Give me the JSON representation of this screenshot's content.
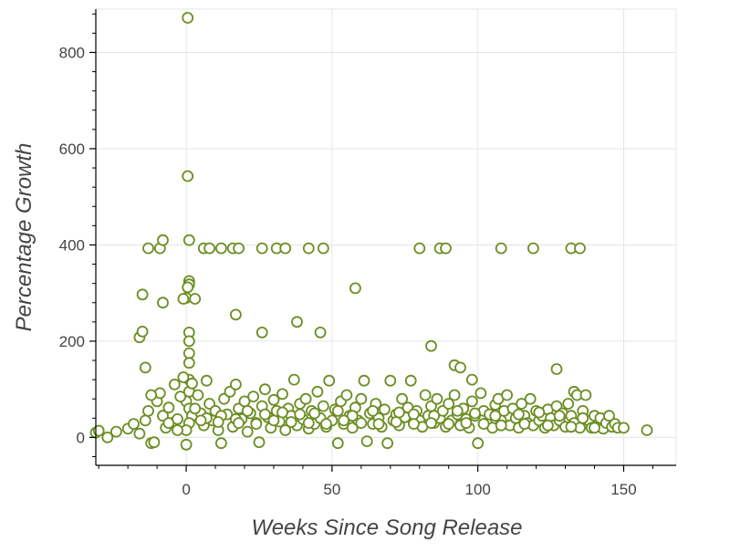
{
  "chart_data": {
    "type": "scatter",
    "title": "",
    "xlabel": "Weeks Since Song Release",
    "ylabel": "Percentage Growth",
    "xlim": [
      -31,
      168
    ],
    "ylim": [
      -58,
      890
    ],
    "x_ticks": [
      0,
      50,
      100,
      150
    ],
    "y_ticks": [
      0,
      200,
      400,
      600,
      800
    ],
    "grid": true,
    "colors": {
      "marker_stroke": "#6b8e23",
      "marker_fill": "#ffffff",
      "grid": "#e5e5e5",
      "axis": "#000000",
      "text": "#444444"
    },
    "points": [
      [
        0.5,
        872
      ],
      [
        0.5,
        543
      ],
      [
        1,
        410
      ],
      [
        1,
        325
      ],
      [
        1,
        318
      ],
      [
        0.5,
        312
      ],
      [
        0,
        290
      ],
      [
        -1,
        288
      ],
      [
        3,
        288
      ],
      [
        1,
        218
      ],
      [
        1,
        200
      ],
      [
        1,
        175
      ],
      [
        1,
        155
      ],
      [
        1,
        120
      ],
      [
        1,
        95
      ],
      [
        0,
        75
      ],
      [
        1,
        60
      ],
      [
        2,
        45
      ],
      [
        1,
        30
      ],
      [
        0,
        15
      ],
      [
        0,
        -15
      ],
      [
        -13,
        393
      ],
      [
        -9,
        393
      ],
      [
        -8,
        410
      ],
      [
        6,
        393
      ],
      [
        8,
        393
      ],
      [
        12,
        393
      ],
      [
        16,
        393
      ],
      [
        18,
        393
      ],
      [
        26,
        393
      ],
      [
        31,
        393
      ],
      [
        34,
        393
      ],
      [
        42,
        393
      ],
      [
        47,
        393
      ],
      [
        80,
        393
      ],
      [
        87,
        393
      ],
      [
        89,
        393
      ],
      [
        108,
        393
      ],
      [
        119,
        393
      ],
      [
        132,
        393
      ],
      [
        135,
        393
      ],
      [
        -15,
        297
      ],
      [
        -8,
        280
      ],
      [
        58,
        310
      ],
      [
        17,
        255
      ],
      [
        26,
        218
      ],
      [
        38,
        240
      ],
      [
        46,
        218
      ],
      [
        84,
        190
      ],
      [
        -16,
        208
      ],
      [
        -15,
        220
      ],
      [
        -14,
        145
      ],
      [
        92,
        150
      ],
      [
        94,
        145
      ],
      [
        98,
        120
      ],
      [
        127,
        142
      ],
      [
        133,
        95
      ],
      [
        -31,
        10
      ],
      [
        -30,
        14
      ],
      [
        -27,
        0
      ],
      [
        -24,
        12
      ],
      [
        -20,
        18
      ],
      [
        -18,
        28
      ],
      [
        -16,
        8
      ],
      [
        -14,
        35
      ],
      [
        -13,
        55
      ],
      [
        -12,
        -12
      ],
      [
        -11,
        -10
      ],
      [
        -10,
        75
      ],
      [
        -9,
        92
      ],
      [
        -8,
        45
      ],
      [
        -7,
        20
      ],
      [
        -6,
        62
      ],
      [
        -5,
        30
      ],
      [
        -4,
        110
      ],
      [
        -3,
        15
      ],
      [
        -2,
        85
      ],
      [
        -1,
        125
      ],
      [
        2,
        112
      ],
      [
        4,
        88
      ],
      [
        5,
        50
      ],
      [
        6,
        25
      ],
      [
        7,
        118
      ],
      [
        8,
        70
      ],
      [
        9,
        35
      ],
      [
        10,
        55
      ],
      [
        11,
        15
      ],
      [
        12,
        -12
      ],
      [
        13,
        80
      ],
      [
        14,
        48
      ],
      [
        15,
        95
      ],
      [
        16,
        22
      ],
      [
        17,
        110
      ],
      [
        18,
        60
      ],
      [
        19,
        38
      ],
      [
        20,
        75
      ],
      [
        21,
        12
      ],
      [
        22,
        50
      ],
      [
        23,
        85
      ],
      [
        24,
        30
      ],
      [
        25,
        -10
      ],
      [
        26,
        65
      ],
      [
        27,
        100
      ],
      [
        28,
        42
      ],
      [
        29,
        20
      ],
      [
        30,
        78
      ],
      [
        31,
        55
      ],
      [
        32,
        33
      ],
      [
        33,
        90
      ],
      [
        34,
        15
      ],
      [
        35,
        60
      ],
      [
        36,
        45
      ],
      [
        37,
        120
      ],
      [
        38,
        25
      ],
      [
        39,
        70
      ],
      [
        40,
        38
      ],
      [
        41,
        80
      ],
      [
        42,
        18
      ],
      [
        43,
        55
      ],
      [
        44,
        28
      ],
      [
        45,
        95
      ],
      [
        46,
        40
      ],
      [
        47,
        65
      ],
      [
        48,
        22
      ],
      [
        49,
        118
      ],
      [
        50,
        35
      ],
      [
        51,
        58
      ],
      [
        52,
        -12
      ],
      [
        53,
        75
      ],
      [
        54,
        28
      ],
      [
        55,
        88
      ],
      [
        56,
        45
      ],
      [
        57,
        20
      ],
      [
        58,
        62
      ],
      [
        59,
        35
      ],
      [
        60,
        80
      ],
      [
        61,
        118
      ],
      [
        62,
        -8
      ],
      [
        63,
        50
      ],
      [
        64,
        28
      ],
      [
        65,
        70
      ],
      [
        66,
        40
      ],
      [
        67,
        22
      ],
      [
        68,
        58
      ],
      [
        69,
        -12
      ],
      [
        70,
        118
      ],
      [
        71,
        35
      ],
      [
        72,
        48
      ],
      [
        73,
        25
      ],
      [
        74,
        80
      ],
      [
        75,
        42
      ],
      [
        76,
        62
      ],
      [
        77,
        118
      ],
      [
        78,
        30
      ],
      [
        79,
        55
      ],
      [
        80,
        35
      ],
      [
        81,
        22
      ],
      [
        82,
        88
      ],
      [
        83,
        45
      ],
      [
        84,
        65
      ],
      [
        85,
        30
      ],
      [
        86,
        80
      ],
      [
        87,
        40
      ],
      [
        88,
        55
      ],
      [
        89,
        22
      ],
      [
        90,
        70
      ],
      [
        91,
        35
      ],
      [
        92,
        88
      ],
      [
        93,
        48
      ],
      [
        94,
        25
      ],
      [
        95,
        60
      ],
      [
        96,
        38
      ],
      [
        97,
        20
      ],
      [
        98,
        75
      ],
      [
        99,
        45
      ],
      [
        100,
        -12
      ],
      [
        101,
        92
      ],
      [
        102,
        55
      ],
      [
        103,
        30
      ],
      [
        104,
        48
      ],
      [
        105,
        20
      ],
      [
        106,
        68
      ],
      [
        107,
        80
      ],
      [
        108,
        35
      ],
      [
        109,
        55
      ],
      [
        110,
        88
      ],
      [
        111,
        25
      ],
      [
        112,
        60
      ],
      [
        113,
        40
      ],
      [
        114,
        20
      ],
      [
        115,
        70
      ],
      [
        116,
        45
      ],
      [
        117,
        30
      ],
      [
        118,
        80
      ],
      [
        119,
        25
      ],
      [
        120,
        55
      ],
      [
        121,
        35
      ],
      [
        122,
        45
      ],
      [
        123,
        20
      ],
      [
        124,
        58
      ],
      [
        125,
        40
      ],
      [
        126,
        25
      ],
      [
        127,
        65
      ],
      [
        128,
        35
      ],
      [
        129,
        50
      ],
      [
        130,
        22
      ],
      [
        131,
        70
      ],
      [
        132,
        45
      ],
      [
        133,
        30
      ],
      [
        134,
        88
      ],
      [
        135,
        20
      ],
      [
        136,
        55
      ],
      [
        137,
        88
      ],
      [
        138,
        35
      ],
      [
        139,
        20
      ],
      [
        140,
        45
      ],
      [
        141,
        25
      ],
      [
        142,
        40
      ],
      [
        143,
        18
      ],
      [
        144,
        30
      ],
      [
        145,
        45
      ],
      [
        146,
        22
      ],
      [
        147,
        28
      ],
      [
        148,
        20
      ],
      [
        150,
        20
      ],
      [
        158,
        15
      ],
      [
        -12,
        88
      ],
      [
        -6,
        30
      ],
      [
        3,
        60
      ],
      [
        7,
        40
      ],
      [
        12,
        45
      ],
      [
        17,
        38
      ],
      [
        21,
        55
      ],
      [
        27,
        48
      ],
      [
        33,
        52
      ],
      [
        39,
        48
      ],
      [
        44,
        50
      ],
      [
        52,
        55
      ],
      [
        57,
        45
      ],
      [
        64,
        55
      ],
      [
        73,
        52
      ],
      [
        78,
        48
      ],
      [
        85,
        45
      ],
      [
        93,
        55
      ],
      [
        99,
        50
      ],
      [
        106,
        45
      ],
      [
        114,
        48
      ],
      [
        121,
        52
      ],
      [
        128,
        45
      ],
      [
        136,
        40
      ],
      [
        -3,
        38
      ],
      [
        5,
        35
      ],
      [
        11,
        32
      ],
      [
        18,
        30
      ],
      [
        24,
        28
      ],
      [
        30,
        35
      ],
      [
        36,
        32
      ],
      [
        42,
        30
      ],
      [
        48,
        28
      ],
      [
        54,
        35
      ],
      [
        60,
        30
      ],
      [
        66,
        28
      ],
      [
        72,
        32
      ],
      [
        78,
        28
      ],
      [
        84,
        30
      ],
      [
        90,
        28
      ],
      [
        96,
        30
      ],
      [
        102,
        28
      ],
      [
        108,
        25
      ],
      [
        116,
        28
      ],
      [
        124,
        25
      ],
      [
        132,
        22
      ],
      [
        140,
        20
      ]
    ]
  }
}
